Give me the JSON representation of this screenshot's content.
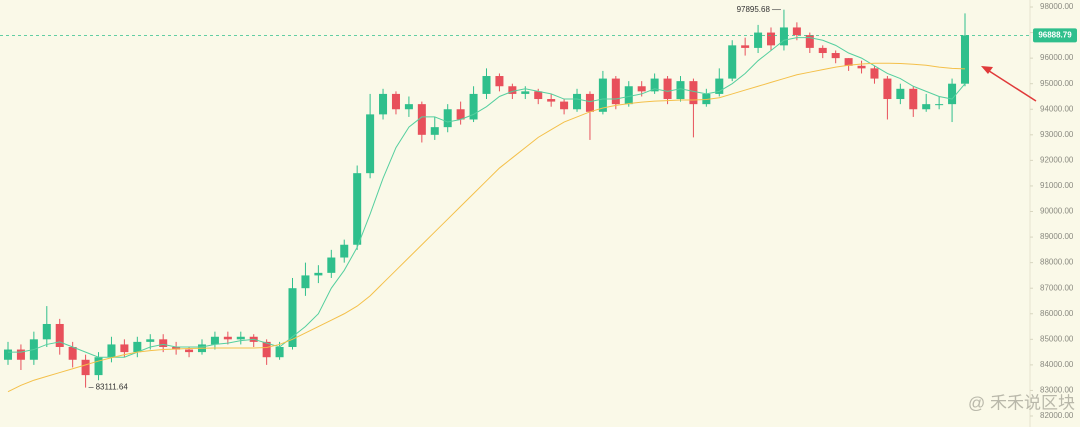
{
  "chart_data": {
    "type": "candlestick",
    "open": [
      84200,
      84600,
      84200,
      85000,
      85600,
      84700,
      84200,
      83600,
      84300,
      84800,
      84500,
      84900,
      85000,
      84700,
      84600,
      84500,
      84800,
      85100,
      85000,
      85100,
      84900,
      84300,
      84700,
      87000,
      87500,
      87600,
      88200,
      88700,
      91500,
      93800,
      94600,
      94000,
      94200,
      93000,
      93300,
      94000,
      93600,
      94600,
      95300,
      94900,
      94600,
      94700,
      94400,
      94300,
      94000,
      94600,
      93900,
      95200,
      94200,
      94900,
      94700,
      95200,
      94400,
      95100,
      94200,
      94600,
      95200,
      96500,
      96400,
      97000,
      96500,
      97200,
      96900,
      96400,
      96200,
      96000,
      95700,
      95600,
      95200,
      94400,
      94800,
      94000,
      94200,
      94200,
      95000
    ],
    "high": [
      84900,
      84800,
      85300,
      86300,
      85800,
      84900,
      84400,
      84500,
      85100,
      85000,
      85100,
      85200,
      85200,
      84900,
      84700,
      85000,
      85300,
      85300,
      85300,
      85200,
      85000,
      84900,
      87400,
      88000,
      87900,
      88500,
      88900,
      91800,
      94600,
      94800,
      94700,
      94500,
      94300,
      93700,
      94200,
      94300,
      94900,
      95600,
      95400,
      95000,
      94900,
      94800,
      94600,
      94400,
      94800,
      94700,
      95500,
      95300,
      95100,
      95100,
      95400,
      95300,
      95300,
      95200,
      94800,
      95600,
      96700,
      96800,
      97300,
      97200,
      97895.68,
      97400,
      97000,
      96500,
      96300,
      96000,
      95900,
      95700,
      95300,
      95000,
      94900,
      94600,
      94500,
      95200,
      97750
    ],
    "low": [
      84000,
      83800,
      84000,
      84700,
      84400,
      83900,
      83111.64,
      83400,
      84100,
      84300,
      84300,
      84600,
      84500,
      84400,
      84300,
      84400,
      84600,
      84800,
      84800,
      84700,
      84000,
      84200,
      84600,
      86700,
      87200,
      87400,
      88000,
      88500,
      91300,
      93600,
      93800,
      93700,
      92700,
      92800,
      93100,
      93400,
      93500,
      94400,
      94700,
      94400,
      94400,
      94200,
      94100,
      93800,
      93900,
      92800,
      93800,
      94000,
      94100,
      94500,
      94600,
      94200,
      94300,
      92900,
      94100,
      94500,
      95100,
      96100,
      96200,
      96300,
      96300,
      96700,
      96200,
      96000,
      95800,
      95500,
      95400,
      95000,
      93600,
      94200,
      93700,
      93900,
      94000,
      93500,
      94900
    ],
    "close": [
      84600,
      84200,
      85000,
      85600,
      84700,
      84200,
      83600,
      84300,
      84800,
      84500,
      84900,
      85000,
      84700,
      84600,
      84500,
      84800,
      85100,
      85000,
      85100,
      84900,
      84300,
      84700,
      87000,
      87500,
      87600,
      88200,
      88700,
      91500,
      93800,
      94600,
      94000,
      94200,
      93000,
      93300,
      94000,
      93600,
      94600,
      95300,
      94900,
      94600,
      94700,
      94400,
      94300,
      94000,
      94600,
      93900,
      95200,
      94200,
      94900,
      94700,
      95200,
      94400,
      95100,
      94200,
      94600,
      95200,
      96500,
      96400,
      97000,
      96500,
      97200,
      96900,
      96400,
      96200,
      96000,
      95700,
      95600,
      95200,
      94400,
      94800,
      94000,
      94200,
      94200,
      95000,
      96888.79
    ],
    "up_color": "#2fbf8c",
    "down_color": "#e8505b",
    "moving_averages": [
      {
        "color": "#55cf9f",
        "values": [
          84500,
          84500,
          84600,
          84800,
          84900,
          84700,
          84500,
          84300,
          84300,
          84300,
          84500,
          84700,
          84800,
          84700,
          84700,
          84700,
          84800,
          84850,
          84950,
          85000,
          84850,
          84700,
          85100,
          85500,
          86000,
          87000,
          87700,
          88600,
          89900,
          91300,
          92500,
          93300,
          93700,
          93700,
          93500,
          93600,
          93800,
          94100,
          94500,
          94700,
          94800,
          94700,
          94600,
          94400,
          94400,
          94300,
          94400,
          94400,
          94500,
          94600,
          94800,
          94700,
          94800,
          94700,
          94600,
          94700,
          95000,
          95400,
          95900,
          96300,
          96700,
          96800,
          96800,
          96700,
          96500,
          96200,
          96000,
          95700,
          95400,
          95200,
          94900,
          94700,
          94500,
          94400,
          95000
        ]
      },
      {
        "color": "#f4c04a",
        "values": [
          82950,
          83200,
          83400,
          83550,
          83700,
          83850,
          84000,
          84150,
          84280,
          84400,
          84500,
          84560,
          84600,
          84620,
          84640,
          84650,
          84660,
          84660,
          84660,
          84660,
          84680,
          84800,
          85000,
          85250,
          85500,
          85750,
          86000,
          86300,
          86700,
          87200,
          87700,
          88200,
          88700,
          89200,
          89700,
          90200,
          90700,
          91200,
          91700,
          92100,
          92500,
          92900,
          93200,
          93500,
          93700,
          93900,
          94050,
          94150,
          94220,
          94280,
          94320,
          94340,
          94360,
          94360,
          94380,
          94450,
          94600,
          94750,
          94900,
          95050,
          95200,
          95350,
          95450,
          95550,
          95650,
          95720,
          95770,
          95800,
          95800,
          95790,
          95760,
          95720,
          95650,
          95600,
          95580
        ]
      }
    ],
    "ylim": [
      81570,
      98274
    ],
    "yticks": [
      {
        "value": 98000,
        "label": "98000.00"
      },
      {
        "value": 97000,
        "label": "97000.00"
      },
      {
        "value": 96000,
        "label": "96000.00"
      },
      {
        "value": 95000,
        "label": "95000.00"
      },
      {
        "value": 94000,
        "label": "94000.00"
      },
      {
        "value": 93000,
        "label": "93000.00"
      },
      {
        "value": 92000,
        "label": "92000.00"
      },
      {
        "value": 91000,
        "label": "91000.00"
      },
      {
        "value": 90000,
        "label": "90000.00"
      },
      {
        "value": 89000,
        "label": "89000.00"
      },
      {
        "value": 88000,
        "label": "88000.00"
      },
      {
        "value": 87000,
        "label": "87000.00"
      },
      {
        "value": 86000,
        "label": "86000.00"
      },
      {
        "value": 85000,
        "label": "85000.00"
      },
      {
        "value": 84000,
        "label": "84000.00"
      },
      {
        "value": 83000,
        "label": "83000.00"
      },
      {
        "value": 82000,
        "label": "82000.00"
      }
    ],
    "high_label": "97895.68",
    "low_label": "83111.64",
    "last_price_label": "96888.79",
    "watermark": "@ 禾禾说区块"
  }
}
